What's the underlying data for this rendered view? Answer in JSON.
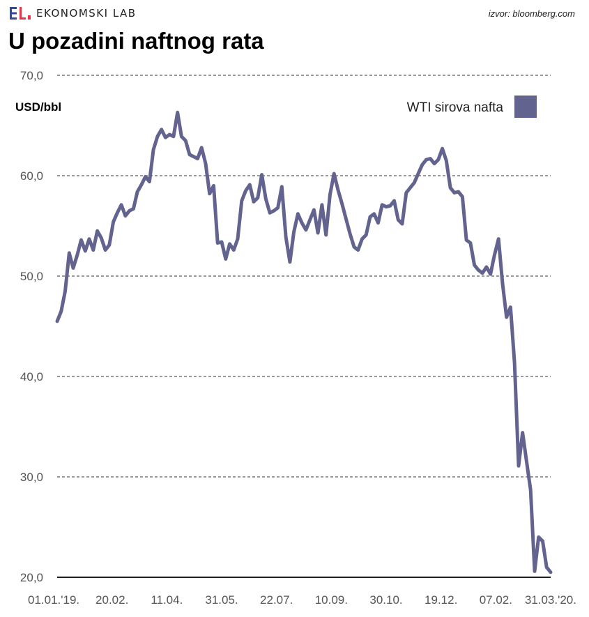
{
  "header": {
    "brand": "EKONOMSKI LAB",
    "source": "izvor: bloomberg.com",
    "title": "U pozadini naftnog rata"
  },
  "colors": {
    "line": "#63638f",
    "logo_blue": "#3b4a8f",
    "logo_red": "#e8374b"
  },
  "chart_data": {
    "type": "line",
    "ylabel": "USD/bbl",
    "ylim": [
      20,
      70
    ],
    "yticks": [
      "20,0",
      "30,0",
      "40,0",
      "50,0",
      "60,0",
      "70,0"
    ],
    "ytick_values": [
      20,
      30,
      40,
      50,
      60,
      70
    ],
    "xticks": [
      "01.01.'19.",
      "20.02.",
      "11.04.",
      "31.05.",
      "22.07.",
      "10.09.",
      "30.10.",
      "19.12.",
      "07.02.",
      "31.03.'20."
    ],
    "grid": true,
    "legend_position": "top-right",
    "series": [
      {
        "name": "WTI sirova nafta",
        "values": [
          45.5,
          46.5,
          48.5,
          52.3,
          50.8,
          52.1,
          53.6,
          52.5,
          53.7,
          52.6,
          54.5,
          53.8,
          52.6,
          53.1,
          55.4,
          56.3,
          57.1,
          56.0,
          56.5,
          56.7,
          58.4,
          59.1,
          59.9,
          59.4,
          62.6,
          63.9,
          64.6,
          63.8,
          64.1,
          63.9,
          66.3,
          63.9,
          63.5,
          62.1,
          61.9,
          61.7,
          62.8,
          61.2,
          58.2,
          59.0,
          53.3,
          53.4,
          51.7,
          53.2,
          52.6,
          53.7,
          57.5,
          58.5,
          59.1,
          57.4,
          57.8,
          60.1,
          57.7,
          56.3,
          56.5,
          56.8,
          58.9,
          53.9,
          51.4,
          54.4,
          56.2,
          55.3,
          54.6,
          55.6,
          56.6,
          54.3,
          57.1,
          54.1,
          58.1,
          60.2,
          58.6,
          57.2,
          55.7,
          54.2,
          52.9,
          52.6,
          53.7,
          54.1,
          55.9,
          56.2,
          55.3,
          57.1,
          56.9,
          57.0,
          57.5,
          55.6,
          55.2,
          58.3,
          58.8,
          59.3,
          60.2,
          61.1,
          61.6,
          61.7,
          61.2,
          61.6,
          62.7,
          61.5,
          58.8,
          58.3,
          58.4,
          57.9,
          53.6,
          53.3,
          51.1,
          50.6,
          50.3,
          50.9,
          50.2,
          52.1,
          53.7,
          49.3,
          45.9,
          46.9,
          41.3,
          31.1,
          34.4,
          31.5,
          28.7,
          20.6,
          24.0,
          23.6,
          21.0,
          20.5
        ],
        "_x_note": "x values are dates from 2019-01-01 to 2020-03-31"
      }
    ]
  }
}
